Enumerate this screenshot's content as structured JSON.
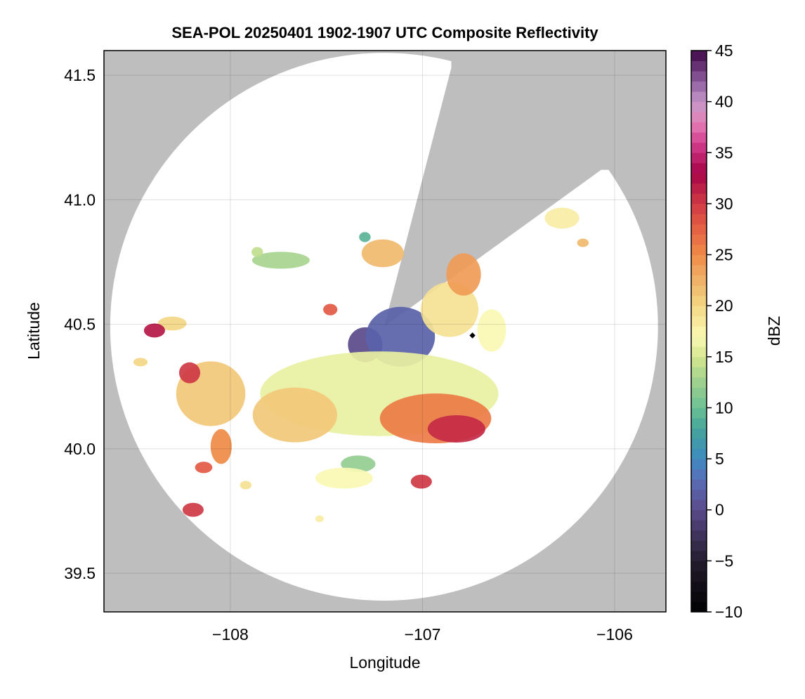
{
  "chart_data": {
    "type": "heatmap",
    "title": "SEA-POL 20250401 1902-1907 UTC Composite Reflectivity",
    "xlabel": "Longitude",
    "ylabel": "Latitude",
    "xlim": [
      -108.658,
      -105.733
    ],
    "ylim": [
      39.345,
      41.599
    ],
    "xticks": [
      -108,
      -107,
      -106
    ],
    "xtick_labels": [
      "−108",
      "−107",
      "−106"
    ],
    "yticks": [
      39.5,
      40.0,
      40.5,
      41.0,
      41.5
    ],
    "ytick_labels": [
      "39.5",
      "40.0",
      "40.5",
      "41.0",
      "41.5"
    ],
    "grid": true,
    "colorbar": {
      "label": "dBZ",
      "range": [
        -10,
        45
      ],
      "step": 1,
      "ticks": [
        -10,
        -5,
        0,
        5,
        10,
        15,
        20,
        25,
        30,
        35,
        40,
        45
      ],
      "tick_labels": [
        "−10",
        "−5",
        "0",
        "5",
        "10",
        "15",
        "20",
        "25",
        "30",
        "35",
        "40",
        "45"
      ]
    },
    "radar": {
      "lon": -107.2,
      "lat": 40.49,
      "range_deg_lat": 1.1
    },
    "blocked_sector": [
      [
        -106.85,
        41.53
      ],
      [
        -106.07,
        41.12
      ]
    ],
    "radar_marker": {
      "lon": -106.74,
      "lat": 40.455
    },
    "echo_cells": [
      {
        "lon": -107.225,
        "lat": 40.221,
        "rlon": 0.62,
        "rlat": 0.17,
        "dbz": 16
      },
      {
        "lon": -107.664,
        "lat": 40.136,
        "rlon": 0.22,
        "rlat": 0.11,
        "dbz": 21
      },
      {
        "lon": -108.102,
        "lat": 40.221,
        "rlon": 0.18,
        "rlat": 0.13,
        "dbz": 21
      },
      {
        "lon": -106.932,
        "lat": 40.122,
        "rlon": 0.29,
        "rlat": 0.1,
        "dbz": 26
      },
      {
        "lon": -106.823,
        "lat": 40.08,
        "rlon": 0.15,
        "rlat": 0.055,
        "dbz": 31
      },
      {
        "lon": -107.115,
        "lat": 40.45,
        "rlon": 0.18,
        "rlat": 0.12,
        "dbz": 2
      },
      {
        "lon": -107.298,
        "lat": 40.418,
        "rlon": 0.09,
        "rlat": 0.07,
        "dbz": 0
      },
      {
        "lon": -106.859,
        "lat": 40.559,
        "rlon": 0.15,
        "rlat": 0.11,
        "dbz": 19
      },
      {
        "lon": -106.786,
        "lat": 40.7,
        "rlon": 0.09,
        "rlat": 0.085,
        "dbz": 24
      },
      {
        "lon": -107.207,
        "lat": 40.785,
        "rlon": 0.11,
        "rlat": 0.056,
        "dbz": 22
      },
      {
        "lon": -107.737,
        "lat": 40.757,
        "rlon": 0.15,
        "rlat": 0.034,
        "dbz": 13
      },
      {
        "lon": -108.303,
        "lat": 40.503,
        "rlon": 0.075,
        "rlat": 0.028,
        "dbz": 20
      },
      {
        "lon": -108.395,
        "lat": 40.475,
        "rlon": 0.055,
        "rlat": 0.028,
        "dbz": 32
      },
      {
        "lon": -108.212,
        "lat": 40.305,
        "rlon": 0.055,
        "rlat": 0.042,
        "dbz": 30
      },
      {
        "lon": -108.048,
        "lat": 40.009,
        "rlon": 0.055,
        "rlat": 0.07,
        "dbz": 25
      },
      {
        "lon": -108.139,
        "lat": 39.925,
        "rlon": 0.045,
        "rlat": 0.023,
        "dbz": 28
      },
      {
        "lon": -108.194,
        "lat": 39.755,
        "rlon": 0.055,
        "rlat": 0.028,
        "dbz": 30
      },
      {
        "lon": -107.006,
        "lat": 39.868,
        "rlon": 0.055,
        "rlat": 0.028,
        "dbz": 30
      },
      {
        "lon": -107.408,
        "lat": 39.882,
        "rlon": 0.15,
        "rlat": 0.042,
        "dbz": 17
      },
      {
        "lon": -107.335,
        "lat": 39.939,
        "rlon": 0.09,
        "rlat": 0.034,
        "dbz": 12
      },
      {
        "lon": -106.274,
        "lat": 40.926,
        "rlon": 0.09,
        "rlat": 0.042,
        "dbz": 18
      },
      {
        "lon": -106.165,
        "lat": 40.827,
        "rlon": 0.03,
        "rlat": 0.017,
        "dbz": 22
      },
      {
        "lon": -107.48,
        "lat": 40.559,
        "rlon": 0.037,
        "rlat": 0.023,
        "dbz": 28
      },
      {
        "lon": -106.64,
        "lat": 40.475,
        "rlon": 0.075,
        "rlat": 0.085,
        "dbz": 17
      },
      {
        "lon": -108.468,
        "lat": 40.348,
        "rlon": 0.037,
        "rlat": 0.017,
        "dbz": 20
      },
      {
        "lon": -107.92,
        "lat": 39.854,
        "rlon": 0.03,
        "rlat": 0.017,
        "dbz": 19
      },
      {
        "lon": -107.536,
        "lat": 39.719,
        "rlon": 0.022,
        "rlat": 0.014,
        "dbz": 18
      },
      {
        "lon": -107.86,
        "lat": 40.79,
        "rlon": 0.03,
        "rlat": 0.02,
        "dbz": 14
      },
      {
        "lon": -107.3,
        "lat": 40.85,
        "rlon": 0.03,
        "rlat": 0.02,
        "dbz": 9
      }
    ]
  }
}
